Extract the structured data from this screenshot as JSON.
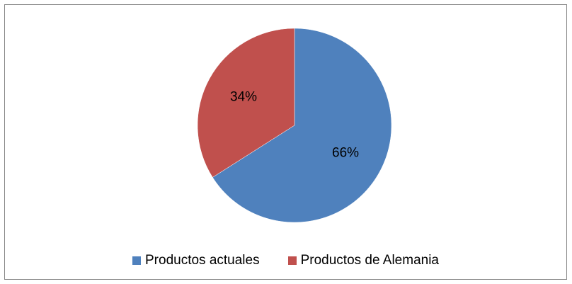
{
  "chart_data": {
    "type": "pie",
    "slices": [
      {
        "name": "Productos actuales",
        "value": 66,
        "label": "66%",
        "color": "#4F81BD"
      },
      {
        "name": "Productos de Alemania",
        "value": 34,
        "label": "34%",
        "color": "#C0504D"
      }
    ],
    "legend_position": "bottom"
  }
}
